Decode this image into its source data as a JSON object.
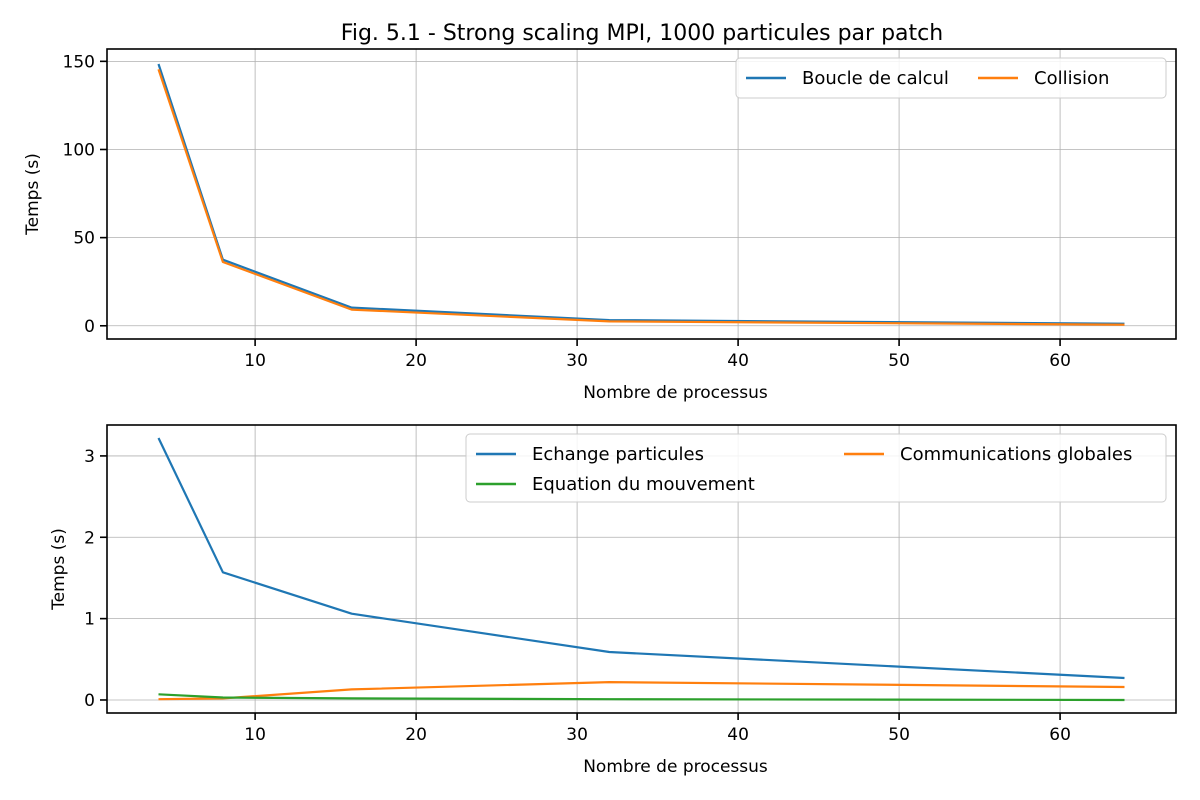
{
  "figure_title": "Fig. 5.1 - Strong scaling MPI, 1000 particules par patch",
  "chart_data": [
    {
      "type": "line",
      "xlabel": "Nombre de processus",
      "ylabel": "Temps (s)",
      "xlim": [
        0.8,
        67.2
      ],
      "ylim": [
        -7.5,
        157
      ],
      "xticks": [
        10,
        20,
        30,
        40,
        50,
        60
      ],
      "yticks": [
        0,
        50,
        100,
        150
      ],
      "grid": true,
      "legend": {
        "placement": "top-right",
        "columns": 2
      },
      "x": [
        4,
        8,
        16,
        32,
        64
      ],
      "series": [
        {
          "name": "Boucle de calcul",
          "color": "#1f77b4",
          "values": [
            148.5,
            37.5,
            10.3,
            3.2,
            1.2
          ]
        },
        {
          "name": "Collision",
          "color": "#ff7f0e",
          "values": [
            145.5,
            36.2,
            9.2,
            2.5,
            0.6
          ]
        }
      ]
    },
    {
      "type": "line",
      "xlabel": "Nombre de processus",
      "ylabel": "Temps (s)",
      "xlim": [
        0.8,
        67.2
      ],
      "ylim": [
        -0.16,
        3.38
      ],
      "xticks": [
        10,
        20,
        30,
        40,
        50,
        60
      ],
      "yticks": [
        0,
        1,
        2,
        3
      ],
      "grid": true,
      "legend": {
        "placement": "top-right",
        "columns": 2
      },
      "x": [
        4,
        8,
        16,
        32,
        64
      ],
      "series": [
        {
          "name": "Echange particules",
          "color": "#1f77b4",
          "values": [
            3.22,
            1.57,
            1.06,
            0.59,
            0.27
          ]
        },
        {
          "name": "Communications globales",
          "color": "#ff7f0e",
          "values": [
            0.01,
            0.02,
            0.13,
            0.22,
            0.16
          ]
        },
        {
          "name": "Equation du mouvement",
          "color": "#2ca02c",
          "values": [
            0.07,
            0.03,
            0.02,
            0.01,
            0.0
          ]
        }
      ]
    }
  ]
}
